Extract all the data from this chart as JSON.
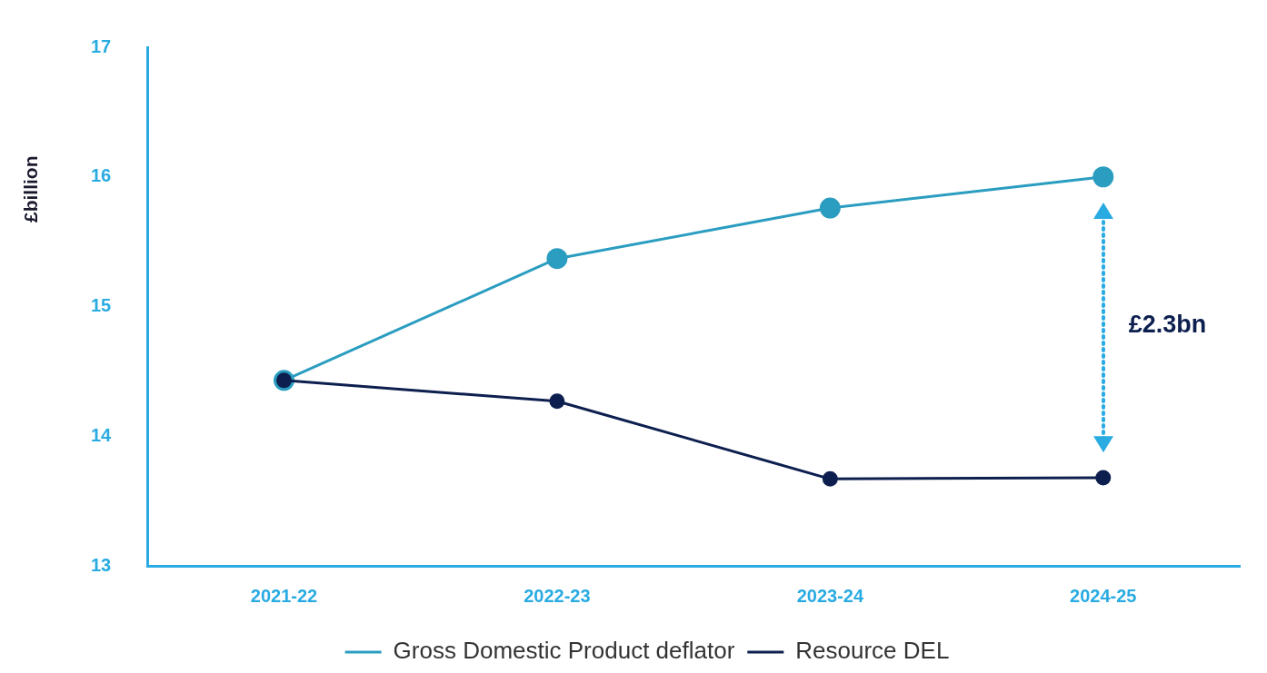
{
  "chart_data": {
    "type": "line",
    "ylabel": "£billion",
    "categories": [
      "2021-22",
      "2022-23",
      "2023-24",
      "2024-25"
    ],
    "series": [
      {
        "name": "Gross Domestic Product deflator",
        "color": "#2a9dc0",
        "values": [
          14.43,
          15.37,
          15.76,
          16.0
        ]
      },
      {
        "name": "Resource DEL",
        "color": "#0d1f4f",
        "values": [
          14.43,
          14.27,
          13.67,
          13.68
        ]
      }
    ],
    "ylim": [
      13,
      17
    ],
    "yticks": [
      13,
      14,
      15,
      16,
      17
    ],
    "grid": false,
    "legend": "bottom",
    "marker": "circle",
    "line_style": "solid",
    "annotations": [
      "£2.3bn"
    ]
  }
}
